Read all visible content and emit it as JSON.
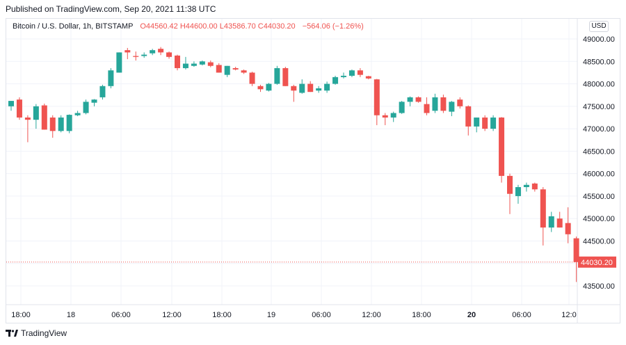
{
  "published": "Published on TradingView.com, Sep 20, 2021 11:38 UTC",
  "legend": {
    "symbol": "Bitcoin / U.S. Dollar, 1h, BITSTAMP",
    "open": "O44560.42",
    "high": "H44600.00",
    "low": "L43586.70",
    "close": "C44030.20",
    "change": "−564.06 (−1.26%)"
  },
  "currency_button": "USD",
  "footer_brand": "TradingView",
  "colors": {
    "up": "#26a69a",
    "down": "#ef5350",
    "grid": "#f0f3fa"
  },
  "chart_data": {
    "type": "candlestick",
    "title": "Bitcoin / U.S. Dollar, 1h, BITSTAMP",
    "ylim": [
      43300,
      49300
    ],
    "y_ticks": [
      43500,
      44000,
      44500,
      45000,
      45500,
      46000,
      46500,
      47000,
      47500,
      48000,
      48500,
      49000
    ],
    "y_tick_labels": [
      "43500.00",
      "44000.00",
      "44500.00",
      "45000.00",
      "45500.00",
      "46000.00",
      "46500.00",
      "47000.00",
      "47500.00",
      "48000.00",
      "48500.00",
      "49000.00"
    ],
    "x_tick_labels": [
      "18:00",
      "18",
      "06:00",
      "12:00",
      "18:00",
      "19",
      "06:00",
      "12:00",
      "18:00",
      "20",
      "06:00",
      "12:0"
    ],
    "x_tick_bold": [
      false,
      false,
      false,
      false,
      false,
      false,
      false,
      false,
      false,
      true,
      false,
      false
    ],
    "last_price": 44030.2,
    "last_price_label": "44030.20",
    "candles": [
      {
        "o": 47500,
        "h": 47620,
        "l": 47400,
        "c": 47620
      },
      {
        "o": 47650,
        "h": 47700,
        "l": 47200,
        "c": 47250
      },
      {
        "o": 47250,
        "h": 47300,
        "l": 46700,
        "c": 47200
      },
      {
        "o": 47200,
        "h": 47550,
        "l": 47000,
        "c": 47500
      },
      {
        "o": 47520,
        "h": 47560,
        "l": 46980,
        "c": 46980
      },
      {
        "o": 47250,
        "h": 47300,
        "l": 46800,
        "c": 46950
      },
      {
        "o": 46950,
        "h": 47300,
        "l": 46920,
        "c": 47250
      },
      {
        "o": 46950,
        "h": 47320,
        "l": 46900,
        "c": 47310
      },
      {
        "o": 47300,
        "h": 47400,
        "l": 47280,
        "c": 47350
      },
      {
        "o": 47350,
        "h": 47650,
        "l": 47320,
        "c": 47600
      },
      {
        "o": 47580,
        "h": 47660,
        "l": 47500,
        "c": 47650
      },
      {
        "o": 47700,
        "h": 47980,
        "l": 47650,
        "c": 47950
      },
      {
        "o": 47950,
        "h": 48350,
        "l": 47900,
        "c": 48300
      },
      {
        "o": 48250,
        "h": 48700,
        "l": 48250,
        "c": 48700
      },
      {
        "o": 48750,
        "h": 48800,
        "l": 48550,
        "c": 48700
      },
      {
        "o": 48620,
        "h": 48720,
        "l": 48520,
        "c": 48600
      },
      {
        "o": 48620,
        "h": 48700,
        "l": 48580,
        "c": 48650
      },
      {
        "o": 48680,
        "h": 48780,
        "l": 48640,
        "c": 48750
      },
      {
        "o": 48780,
        "h": 48820,
        "l": 48640,
        "c": 48700
      },
      {
        "o": 48700,
        "h": 48720,
        "l": 48560,
        "c": 48600
      },
      {
        "o": 48630,
        "h": 48650,
        "l": 48300,
        "c": 48350
      },
      {
        "o": 48350,
        "h": 48600,
        "l": 48320,
        "c": 48450
      },
      {
        "o": 48400,
        "h": 48500,
        "l": 48380,
        "c": 48450
      },
      {
        "o": 48430,
        "h": 48520,
        "l": 48410,
        "c": 48500
      },
      {
        "o": 48480,
        "h": 48520,
        "l": 48370,
        "c": 48400
      },
      {
        "o": 48420,
        "h": 48460,
        "l": 48250,
        "c": 48250
      },
      {
        "o": 48200,
        "h": 48400,
        "l": 48150,
        "c": 48400
      },
      {
        "o": 48350,
        "h": 48380,
        "l": 48300,
        "c": 48320
      },
      {
        "o": 48300,
        "h": 48320,
        "l": 48220,
        "c": 48250
      },
      {
        "o": 48250,
        "h": 48270,
        "l": 47950,
        "c": 48000
      },
      {
        "o": 47950,
        "h": 47980,
        "l": 47820,
        "c": 47880
      },
      {
        "o": 47850,
        "h": 48020,
        "l": 47830,
        "c": 48000
      },
      {
        "o": 48000,
        "h": 48400,
        "l": 47980,
        "c": 48350
      },
      {
        "o": 48350,
        "h": 48380,
        "l": 47950,
        "c": 47950
      },
      {
        "o": 47950,
        "h": 47980,
        "l": 47600,
        "c": 47850
      },
      {
        "o": 47800,
        "h": 48100,
        "l": 47780,
        "c": 48000
      },
      {
        "o": 48000,
        "h": 48060,
        "l": 47820,
        "c": 47820
      },
      {
        "o": 47850,
        "h": 47950,
        "l": 47800,
        "c": 47900
      },
      {
        "o": 47850,
        "h": 48050,
        "l": 47800,
        "c": 48000
      },
      {
        "o": 48000,
        "h": 48180,
        "l": 47980,
        "c": 48150
      },
      {
        "o": 48150,
        "h": 48250,
        "l": 48120,
        "c": 48180
      },
      {
        "o": 48180,
        "h": 48320,
        "l": 48150,
        "c": 48300
      },
      {
        "o": 48300,
        "h": 48350,
        "l": 48150,
        "c": 48200
      },
      {
        "o": 48170,
        "h": 48180,
        "l": 48100,
        "c": 48120
      },
      {
        "o": 48100,
        "h": 48110,
        "l": 47080,
        "c": 47300
      },
      {
        "o": 47300,
        "h": 47350,
        "l": 47080,
        "c": 47250
      },
      {
        "o": 47250,
        "h": 47380,
        "l": 47150,
        "c": 47350
      },
      {
        "o": 47350,
        "h": 47620,
        "l": 47330,
        "c": 47600
      },
      {
        "o": 47600,
        "h": 47720,
        "l": 47500,
        "c": 47700
      },
      {
        "o": 47700,
        "h": 47720,
        "l": 47580,
        "c": 47600
      },
      {
        "o": 47550,
        "h": 47700,
        "l": 47300,
        "c": 47350
      },
      {
        "o": 47400,
        "h": 47780,
        "l": 47350,
        "c": 47700
      },
      {
        "o": 47700,
        "h": 47760,
        "l": 47350,
        "c": 47400
      },
      {
        "o": 47380,
        "h": 47620,
        "l": 47280,
        "c": 47600
      },
      {
        "o": 47650,
        "h": 47700,
        "l": 47450,
        "c": 47500
      },
      {
        "o": 47500,
        "h": 47520,
        "l": 46850,
        "c": 47050
      },
      {
        "o": 47050,
        "h": 47250,
        "l": 46920,
        "c": 47250
      },
      {
        "o": 47250,
        "h": 47300,
        "l": 46950,
        "c": 47000
      },
      {
        "o": 47000,
        "h": 47300,
        "l": 46950,
        "c": 47250
      },
      {
        "o": 47250,
        "h": 47260,
        "l": 45800,
        "c": 45950
      },
      {
        "o": 45950,
        "h": 46000,
        "l": 45100,
        "c": 45550
      },
      {
        "o": 45500,
        "h": 45750,
        "l": 45330,
        "c": 45700
      },
      {
        "o": 45700,
        "h": 45800,
        "l": 45600,
        "c": 45750
      },
      {
        "o": 45780,
        "h": 45800,
        "l": 45600,
        "c": 45650
      },
      {
        "o": 45650,
        "h": 45700,
        "l": 44400,
        "c": 44800
      },
      {
        "o": 44800,
        "h": 45150,
        "l": 44700,
        "c": 45050
      },
      {
        "o": 45000,
        "h": 45150,
        "l": 44800,
        "c": 44800
      },
      {
        "o": 44900,
        "h": 45250,
        "l": 44450,
        "c": 44650
      },
      {
        "o": 44560,
        "h": 44600,
        "l": 43587,
        "c": 44030
      }
    ]
  }
}
